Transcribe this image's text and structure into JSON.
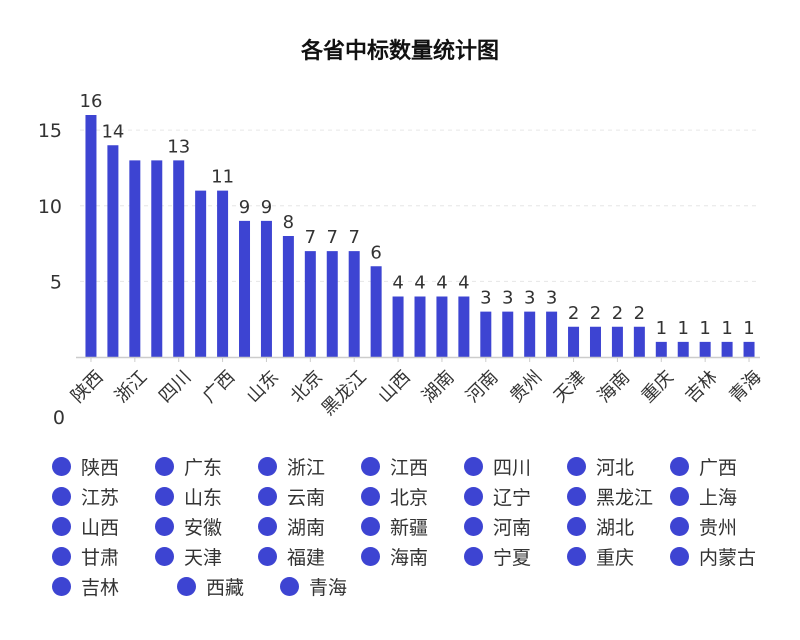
{
  "colors": {
    "bar": "#3d44d2",
    "axis": "#cccccc",
    "grid": "#e6e6e6"
  },
  "chart_data": {
    "type": "bar",
    "title": "各省中标数量统计图",
    "categories": [
      "陕西",
      "广东",
      "浙江",
      "江西",
      "四川",
      "河北",
      "广西",
      "江苏",
      "山东",
      "云南",
      "北京",
      "辽宁",
      "黑龙江",
      "上海",
      "山西",
      "安徽",
      "湖南",
      "新疆",
      "河南",
      "湖北",
      "贵州",
      "甘肃",
      "天津",
      "福建",
      "海南",
      "宁夏",
      "重庆",
      "内蒙古",
      "吉林",
      "西藏",
      "青海"
    ],
    "values": [
      16,
      14,
      13,
      13,
      13,
      11,
      11,
      9,
      9,
      8,
      7,
      7,
      7,
      6,
      4,
      4,
      4,
      4,
      3,
      3,
      3,
      3,
      2,
      2,
      2,
      2,
      1,
      1,
      1,
      1,
      1
    ],
    "value_labels": [
      "16",
      "14",
      "",
      "",
      "13",
      "",
      "11",
      "9",
      "9",
      "8",
      "7",
      "7",
      "7",
      "6",
      "4",
      "4",
      "4",
      "4",
      "3",
      "3",
      "3",
      "3",
      "2",
      "2",
      "2",
      "2",
      "1",
      "1",
      "1",
      "1",
      "1"
    ],
    "x_tick_labels": [
      "陕西",
      "浙江",
      "四川",
      "广西",
      "山东",
      "北京",
      "黑龙江",
      "山西",
      "湖南",
      "河南",
      "贵州",
      "天津",
      "海南",
      "重庆",
      "吉林",
      "青海"
    ],
    "y_tick_labels": [
      "0",
      "5",
      "10",
      "15"
    ],
    "y_ticks": [
      0,
      5,
      10,
      15
    ],
    "ylim": [
      0,
      16
    ],
    "grid": true,
    "legend": {
      "position": "bottom",
      "items": [
        "陕西",
        "广东",
        "浙江",
        "江西",
        "四川",
        "河北",
        "广西",
        "江苏",
        "山东",
        "云南",
        "北京",
        "辽宁",
        "黑龙江",
        "上海",
        "山西",
        "安徽",
        "湖南",
        "新疆",
        "河南",
        "湖北",
        "贵州",
        "甘肃",
        "天津",
        "福建",
        "海南",
        "宁夏",
        "重庆",
        "内蒙古",
        "吉林",
        "西藏",
        "青海"
      ]
    }
  }
}
